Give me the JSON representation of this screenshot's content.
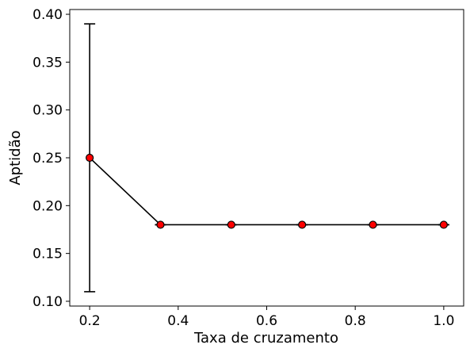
{
  "chart_data": {
    "type": "line",
    "title": "",
    "xlabel": "Taxa de cruzamento",
    "ylabel": "Aptidão",
    "xlim": [
      0.155,
      1.045
    ],
    "ylim": [
      0.095,
      0.405
    ],
    "x_ticks": [
      "0.2",
      "0.4",
      "0.6",
      "0.8",
      "1.0"
    ],
    "y_ticks": [
      "0.10",
      "0.15",
      "0.20",
      "0.25",
      "0.30",
      "0.35",
      "0.40"
    ],
    "grid": false,
    "series": [
      {
        "x": [
          0.2,
          0.36,
          0.52,
          0.68,
          0.84,
          1.0
        ],
        "y": [
          0.25,
          0.18,
          0.18,
          0.18,
          0.18,
          0.18
        ],
        "yerr": [
          0.14,
          0.0,
          0.0,
          0.0,
          0.0,
          0.0
        ],
        "line_color": "#000000",
        "marker_color": "#ff0000",
        "marker_edge": "#000000"
      }
    ]
  }
}
